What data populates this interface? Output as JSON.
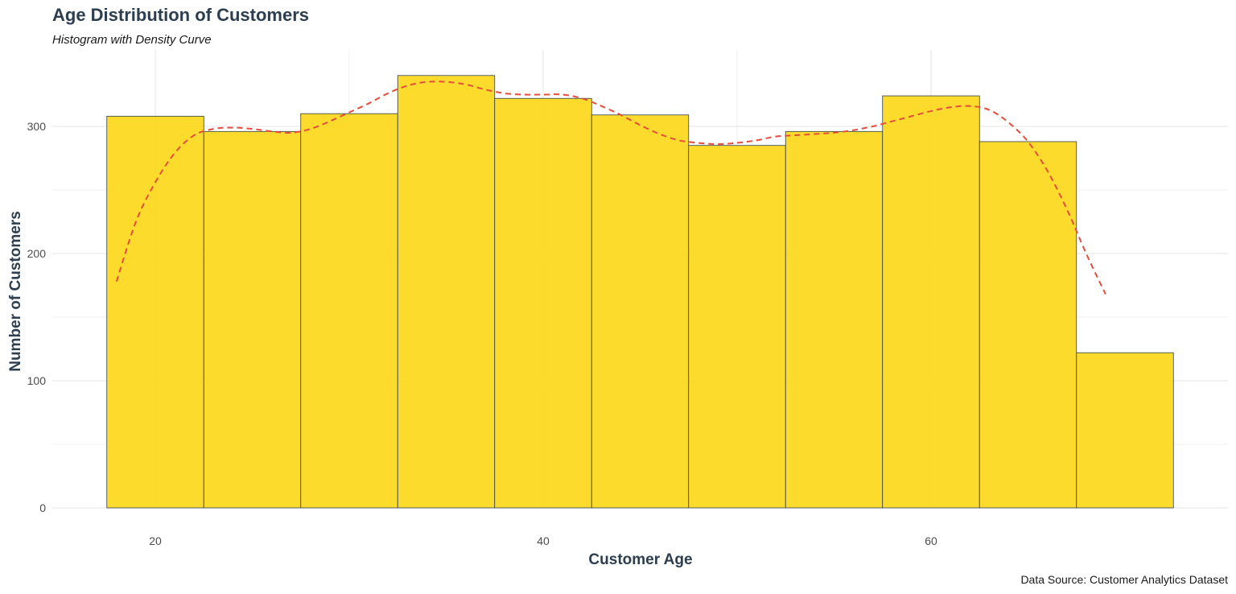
{
  "chart_data": {
    "type": "bar",
    "title": "Age Distribution of Customers",
    "subtitle": "Histogram with Density Curve",
    "xlabel": "Customer Age",
    "ylabel": "Number of Customers",
    "caption": "Data Source: Customer Analytics Dataset",
    "xlim": [
      15,
      70
    ],
    "ylim": [
      0,
      350
    ],
    "x_ticks": [
      20,
      40,
      60
    ],
    "y_ticks": [
      0,
      100,
      200,
      300
    ],
    "grid": true,
    "bins": [
      {
        "start": 17.5,
        "end": 22.5,
        "count": 308
      },
      {
        "start": 22.5,
        "end": 27.5,
        "count": 296
      },
      {
        "start": 27.5,
        "end": 32.5,
        "count": 310
      },
      {
        "start": 32.5,
        "end": 37.5,
        "count": 340
      },
      {
        "start": 37.5,
        "end": 42.5,
        "count": 322
      },
      {
        "start": 42.5,
        "end": 47.5,
        "count": 309
      },
      {
        "start": 47.5,
        "end": 52.5,
        "count": 285
      },
      {
        "start": 52.5,
        "end": 57.5,
        "count": 296
      },
      {
        "start": 57.5,
        "end": 62.5,
        "count": 324
      },
      {
        "start": 62.5,
        "end": 67.5,
        "count": 288
      },
      {
        "start": 67.5,
        "end": 72.5,
        "count": 122
      }
    ],
    "density_curve": {
      "x": [
        18,
        19,
        20,
        21,
        22,
        23,
        24,
        25,
        26,
        27,
        28,
        29,
        30,
        31,
        32,
        33,
        34,
        35,
        36,
        37,
        38,
        39,
        40,
        41,
        42,
        43,
        44,
        45,
        46,
        47,
        48,
        49,
        50,
        51,
        52,
        53,
        54,
        55,
        56,
        57,
        58,
        59,
        60,
        61,
        62,
        63,
        64,
        65,
        66,
        67,
        68,
        69
      ],
      "y": [
        178,
        225,
        256,
        279,
        293,
        298,
        299,
        298,
        296,
        295,
        298,
        304,
        311,
        318,
        326,
        332,
        335,
        335,
        333,
        329,
        326,
        325,
        325,
        325,
        322,
        316,
        309,
        301,
        294,
        289,
        287,
        286,
        287,
        289,
        292,
        293,
        294,
        295,
        297,
        300,
        304,
        308,
        312,
        315,
        316,
        313,
        303,
        288,
        265,
        235,
        200,
        168
      ]
    },
    "colors": {
      "bar_fill": "#fdd922",
      "bar_stroke": "#2c3e50",
      "density_line": "#e74c3c",
      "grid": "#e5e5e5"
    }
  }
}
